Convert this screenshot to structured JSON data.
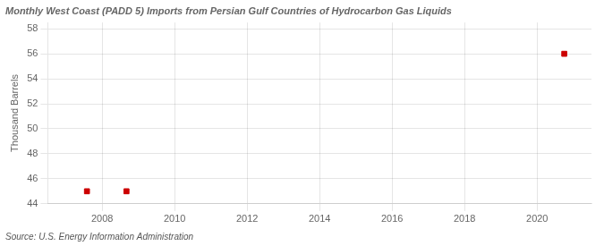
{
  "chart_data": {
    "type": "scatter",
    "title": "Monthly West Coast (PADD 5) Imports from Persian Gulf Countries of Hydrocarbon Gas Liquids",
    "ylabel": "Thousand Barrels",
    "annotations": [
      "Source: U.S. Energy Information Administration"
    ],
    "x": [
      2007.58,
      2008.67,
      2020.75
    ],
    "values": [
      45.0,
      45.0,
      56.0
    ],
    "color": "#cc0000",
    "marker": "square",
    "xlim": [
      2006.5,
      2021.5
    ],
    "ylim": [
      44,
      58.5
    ],
    "xticks": [
      2008,
      2010,
      2012,
      2014,
      2016,
      2018,
      2020
    ],
    "yticks": [
      44,
      46,
      48,
      50,
      52,
      54,
      56,
      58
    ],
    "grid": true,
    "legend": false
  }
}
